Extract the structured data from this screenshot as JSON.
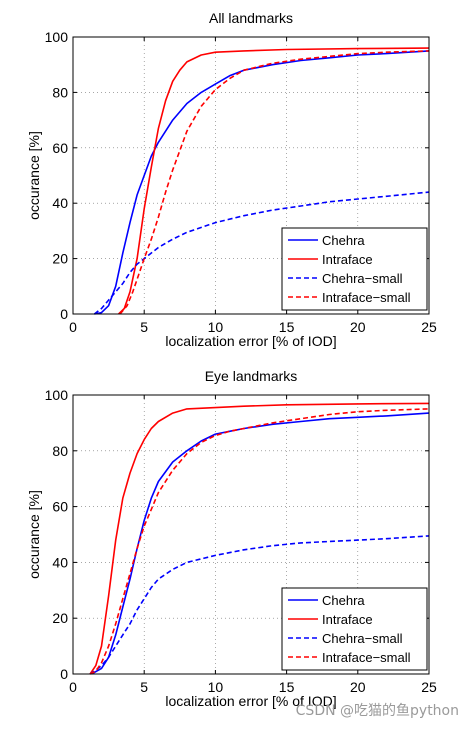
{
  "chart_data": [
    {
      "type": "line",
      "title": "All landmarks",
      "xlabel": "localization error [% of IOD]",
      "ylabel": "occurance [%]",
      "xlim": [
        0,
        25
      ],
      "ylim": [
        0,
        100
      ],
      "xticks": [
        "0",
        "5",
        "10",
        "15",
        "20",
        "25"
      ],
      "yticks": [
        "0",
        "20",
        "40",
        "60",
        "80",
        "100"
      ],
      "grid": true,
      "legend_position": "bottom-right",
      "series": [
        {
          "name": "Chehra",
          "color": "#0000ff",
          "dash": "solid",
          "points": [
            [
              1.5,
              0
            ],
            [
              2,
              0.5
            ],
            [
              2.5,
              3
            ],
            [
              3,
              10
            ],
            [
              3.5,
              22
            ],
            [
              4,
              33
            ],
            [
              4.5,
              43
            ],
            [
              5,
              50
            ],
            [
              5.5,
              57
            ],
            [
              6,
              62
            ],
            [
              7,
              70
            ],
            [
              8,
              76
            ],
            [
              9,
              80
            ],
            [
              10,
              83
            ],
            [
              11,
              86
            ],
            [
              12,
              88
            ],
            [
              14,
              90
            ],
            [
              16,
              91.5
            ],
            [
              18,
              92.5
            ],
            [
              20,
              93.5
            ],
            [
              22,
              94
            ],
            [
              25,
              95
            ]
          ]
        },
        {
          "name": "Intraface",
          "color": "#ff0000",
          "dash": "solid",
          "points": [
            [
              3.2,
              0
            ],
            [
              3.6,
              2
            ],
            [
              4,
              8
            ],
            [
              4.5,
              20
            ],
            [
              5,
              38
            ],
            [
              5.5,
              53
            ],
            [
              6,
              67
            ],
            [
              6.5,
              77
            ],
            [
              7,
              84
            ],
            [
              7.5,
              88
            ],
            [
              8,
              91
            ],
            [
              9,
              93.5
            ],
            [
              10,
              94.5
            ],
            [
              12,
              95
            ],
            [
              15,
              95.5
            ],
            [
              20,
              95.8
            ],
            [
              25,
              96
            ]
          ]
        },
        {
          "name": "Chehra−small",
          "color": "#0000ff",
          "dash": "dashed",
          "points": [
            [
              1.5,
              0
            ],
            [
              2,
              2
            ],
            [
              2.5,
              5
            ],
            [
              3,
              8
            ],
            [
              3.5,
              11
            ],
            [
              4,
              15
            ],
            [
              4.5,
              18
            ],
            [
              5,
              20
            ],
            [
              6,
              24
            ],
            [
              7,
              27
            ],
            [
              8,
              29.5
            ],
            [
              10,
              33
            ],
            [
              12,
              35.5
            ],
            [
              14,
              37.5
            ],
            [
              16,
              39
            ],
            [
              18,
              40.5
            ],
            [
              20,
              41.5
            ],
            [
              22,
              42.5
            ],
            [
              25,
              44
            ]
          ]
        },
        {
          "name": "Intraface−small",
          "color": "#ff0000",
          "dash": "dashed",
          "points": [
            [
              3.3,
              0
            ],
            [
              3.8,
              3
            ],
            [
              4.2,
              8
            ],
            [
              4.6,
              14
            ],
            [
              5,
              20
            ],
            [
              5.5,
              27
            ],
            [
              6,
              35
            ],
            [
              6.5,
              44
            ],
            [
              7,
              52
            ],
            [
              7.5,
              59
            ],
            [
              8,
              66
            ],
            [
              9,
              75
            ],
            [
              10,
              81
            ],
            [
              11,
              85
            ],
            [
              12,
              88
            ],
            [
              14,
              90.5
            ],
            [
              16,
              92
            ],
            [
              18,
              93
            ],
            [
              20,
              94
            ],
            [
              22,
              94.5
            ],
            [
              25,
              95
            ]
          ]
        }
      ]
    },
    {
      "type": "line",
      "title": "Eye landmarks",
      "xlabel": "localization error [% of IOD]",
      "ylabel": "occurance [%]",
      "xlim": [
        0,
        25
      ],
      "ylim": [
        0,
        100
      ],
      "xticks": [
        "0",
        "5",
        "10",
        "15",
        "20",
        "25"
      ],
      "yticks": [
        "0",
        "20",
        "40",
        "60",
        "80",
        "100"
      ],
      "grid": true,
      "legend_position": "bottom-right",
      "series": [
        {
          "name": "Chehra",
          "color": "#0000ff",
          "dash": "solid",
          "points": [
            [
              1.3,
              0
            ],
            [
              2,
              2
            ],
            [
              2.5,
              6
            ],
            [
              3,
              14
            ],
            [
              3.5,
              24
            ],
            [
              4,
              34
            ],
            [
              4.5,
              45
            ],
            [
              5,
              55
            ],
            [
              5.5,
              63
            ],
            [
              6,
              69
            ],
            [
              7,
              76
            ],
            [
              8,
              80
            ],
            [
              9,
              83.5
            ],
            [
              10,
              86
            ],
            [
              11,
              87
            ],
            [
              12,
              88
            ],
            [
              14,
              89.5
            ],
            [
              16,
              90.5
            ],
            [
              18,
              91.5
            ],
            [
              20,
              92
            ],
            [
              22,
              92.5
            ],
            [
              25,
              93.5
            ]
          ]
        },
        {
          "name": "Intraface",
          "color": "#ff0000",
          "dash": "solid",
          "points": [
            [
              1.2,
              0
            ],
            [
              1.6,
              3
            ],
            [
              2,
              10
            ],
            [
              2.5,
              28
            ],
            [
              3,
              48
            ],
            [
              3.5,
              63
            ],
            [
              4,
              72
            ],
            [
              4.5,
              79
            ],
            [
              5,
              84
            ],
            [
              5.5,
              88
            ],
            [
              6,
              90.5
            ],
            [
              7,
              93.5
            ],
            [
              8,
              95
            ],
            [
              10,
              95.5
            ],
            [
              12,
              96
            ],
            [
              15,
              96.5
            ],
            [
              20,
              96.8
            ],
            [
              25,
              97
            ]
          ]
        },
        {
          "name": "Chehra−small",
          "color": "#0000ff",
          "dash": "dashed",
          "points": [
            [
              1.2,
              0
            ],
            [
              1.5,
              1
            ],
            [
              2,
              3
            ],
            [
              2.5,
              6
            ],
            [
              3,
              10
            ],
            [
              3.5,
              14
            ],
            [
              4,
              18
            ],
            [
              4.5,
              23
            ],
            [
              5,
              27
            ],
            [
              5.5,
              31
            ],
            [
              6,
              34
            ],
            [
              7,
              37.5
            ],
            [
              8,
              40
            ],
            [
              10,
              42.5
            ],
            [
              12,
              44.5
            ],
            [
              14,
              46
            ],
            [
              16,
              47
            ],
            [
              18,
              47.5
            ],
            [
              20,
              48
            ],
            [
              22,
              48.5
            ],
            [
              25,
              49.5
            ]
          ]
        },
        {
          "name": "Intraface−small",
          "color": "#ff0000",
          "dash": "dashed",
          "points": [
            [
              1.2,
              0
            ],
            [
              1.6,
              1
            ],
            [
              2,
              4
            ],
            [
              2.5,
              10
            ],
            [
              3,
              18
            ],
            [
              3.5,
              27
            ],
            [
              4,
              36
            ],
            [
              4.5,
              45
            ],
            [
              5,
              53
            ],
            [
              5.5,
              59
            ],
            [
              6,
              65
            ],
            [
              7,
              73
            ],
            [
              8,
              79
            ],
            [
              9,
              83
            ],
            [
              10,
              85.5
            ],
            [
              11,
              87
            ],
            [
              12,
              88
            ],
            [
              14,
              90
            ],
            [
              16,
              91.5
            ],
            [
              18,
              93
            ],
            [
              20,
              94
            ],
            [
              22,
              94.5
            ],
            [
              25,
              95
            ]
          ]
        }
      ]
    }
  ],
  "watermark": "CSDN @吃猫的鱼python"
}
